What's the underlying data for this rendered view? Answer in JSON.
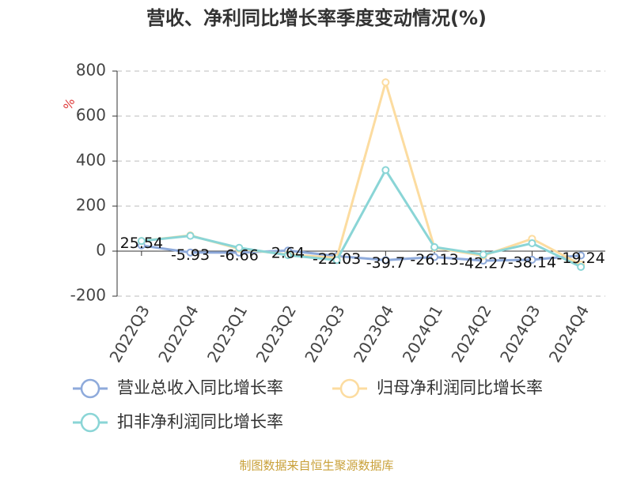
{
  "chart_data": {
    "type": "line",
    "title": "营收、净利同比增长率季度变动情况(%)",
    "y_label": "%",
    "categories": [
      "2022Q3",
      "2022Q4",
      "2023Q1",
      "2023Q2",
      "2023Q3",
      "2023Q4",
      "2024Q1",
      "2024Q2",
      "2024Q3",
      "2024Q4"
    ],
    "series": [
      {
        "name": "营业总收入同比增长率",
        "color": "#8eaadb",
        "values": [
          25.54,
          -5.93,
          -6.66,
          2.64,
          -22.03,
          -39.7,
          -26.13,
          -42.27,
          -38.14,
          -19.24
        ],
        "show_labels": true
      },
      {
        "name": "归母净利润同比增长率",
        "color": "#fcdca0",
        "values": [
          45,
          70,
          10,
          -15,
          -30,
          750,
          15,
          -20,
          55,
          -60
        ]
      },
      {
        "name": "扣非净利润同比增长率",
        "color": "#8ad5d6",
        "values": [
          45,
          68,
          15,
          -18,
          -40,
          360,
          18,
          -15,
          35,
          -70
        ]
      }
    ],
    "ylim": [
      -200,
      800
    ],
    "yticks": [
      -200,
      0,
      200,
      400,
      600,
      800
    ],
    "grid": true,
    "source": "制图数据来自恒生聚源数据库"
  }
}
